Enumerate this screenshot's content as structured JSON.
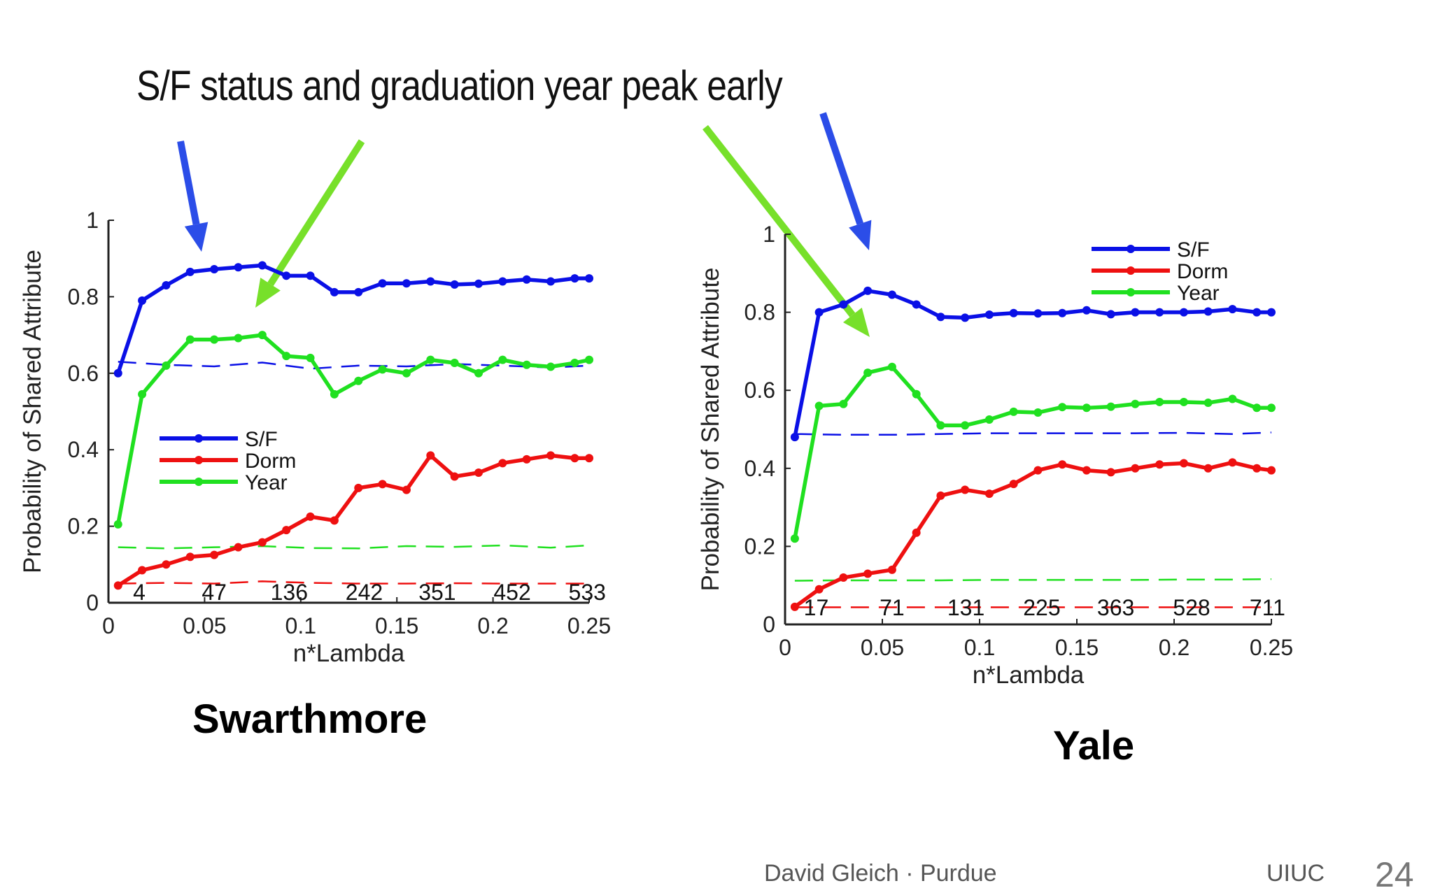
{
  "slide": {
    "title": "S/F status and graduation year peak early",
    "footer_author": "David Gleich · Purdue",
    "footer_venue": "UIUC",
    "page_number": "24",
    "annotation_colors": {
      "blue_arrow": "#2b4de8",
      "green_arrow": "#77e02a"
    }
  },
  "chart_data": [
    {
      "type": "line",
      "caption": "Swarthmore",
      "xlabel": "n*Lambda",
      "ylabel": "Probability of Shared Attribute",
      "xlim": [
        0,
        0.25
      ],
      "ylim": [
        0,
        1
      ],
      "xticks": [
        "0",
        "0.05",
        "0.1",
        "0.15",
        "0.2",
        "0.25"
      ],
      "yticks": [
        "0",
        "0.2",
        "0.4",
        "0.6",
        "0.8",
        "1"
      ],
      "legend": [
        "S/F",
        "Dorm",
        "Year"
      ],
      "legend_position": "middle-left",
      "annotations": [
        {
          "x": 0.016,
          "label": "4"
        },
        {
          "x": 0.055,
          "label": "47"
        },
        {
          "x": 0.094,
          "label": "136"
        },
        {
          "x": 0.133,
          "label": "242"
        },
        {
          "x": 0.171,
          "label": "351"
        },
        {
          "x": 0.21,
          "label": "452"
        },
        {
          "x": 0.249,
          "label": "533"
        }
      ],
      "x": [
        0.005,
        0.0175,
        0.03,
        0.0425,
        0.055,
        0.0675,
        0.08,
        0.0925,
        0.105,
        0.1175,
        0.13,
        0.1425,
        0.155,
        0.1675,
        0.18,
        0.1925,
        0.205,
        0.2175,
        0.23,
        0.2425,
        0.25
      ],
      "series": [
        {
          "name": "S/F",
          "color": "#0a10e6",
          "values": [
            0.6,
            0.79,
            0.83,
            0.865,
            0.872,
            0.877,
            0.882,
            0.855,
            0.855,
            0.812,
            0.812,
            0.835,
            0.835,
            0.84,
            0.832,
            0.834,
            0.84,
            0.845,
            0.84,
            0.848,
            0.848
          ]
        },
        {
          "name": "Dorm",
          "color": "#ee1010",
          "values": [
            0.045,
            0.085,
            0.1,
            0.12,
            0.125,
            0.145,
            0.158,
            0.19,
            0.225,
            0.215,
            0.3,
            0.31,
            0.295,
            0.385,
            0.33,
            0.34,
            0.365,
            0.375,
            0.385,
            0.378,
            0.378
          ]
        },
        {
          "name": "Year",
          "color": "#20e020",
          "values": [
            0.205,
            0.545,
            0.62,
            0.688,
            0.688,
            0.692,
            0.7,
            0.645,
            0.64,
            0.545,
            0.58,
            0.61,
            0.6,
            0.635,
            0.627,
            0.6,
            0.635,
            0.622,
            0.617,
            0.627,
            0.635
          ]
        }
      ],
      "baselines": [
        {
          "name": "S/F baseline",
          "color": "#0a10e6",
          "x": [
            0.005,
            0.03,
            0.055,
            0.08,
            0.105,
            0.13,
            0.155,
            0.18,
            0.205,
            0.23,
            0.25
          ],
          "values": [
            0.63,
            0.622,
            0.618,
            0.628,
            0.612,
            0.62,
            0.618,
            0.624,
            0.62,
            0.615,
            0.62
          ]
        },
        {
          "name": "Year baseline",
          "color": "#20e020",
          "x": [
            0.005,
            0.03,
            0.055,
            0.08,
            0.105,
            0.13,
            0.155,
            0.18,
            0.205,
            0.23,
            0.25
          ],
          "values": [
            0.145,
            0.142,
            0.145,
            0.148,
            0.143,
            0.142,
            0.148,
            0.146,
            0.15,
            0.144,
            0.15
          ]
        },
        {
          "name": "Dorm baseline",
          "color": "#ee1010",
          "x": [
            0.005,
            0.03,
            0.055,
            0.08,
            0.105,
            0.13,
            0.155,
            0.18,
            0.205,
            0.23,
            0.25
          ],
          "values": [
            0.05,
            0.052,
            0.05,
            0.056,
            0.052,
            0.05,
            0.05,
            0.051,
            0.05,
            0.05,
            0.05
          ]
        }
      ]
    },
    {
      "type": "line",
      "caption": "Yale",
      "xlabel": "n*Lambda",
      "ylabel": "Probability of Shared Attribute",
      "xlim": [
        0,
        0.25
      ],
      "ylim": [
        0,
        1
      ],
      "xticks": [
        "0",
        "0.05",
        "0.1",
        "0.15",
        "0.2",
        "0.25"
      ],
      "yticks": [
        "0",
        "0.2",
        "0.4",
        "0.6",
        "0.8",
        "1"
      ],
      "legend": [
        "S/F",
        "Dorm",
        "Year"
      ],
      "legend_position": "top-right",
      "annotations": [
        {
          "x": 0.016,
          "label": "17"
        },
        {
          "x": 0.055,
          "label": "71"
        },
        {
          "x": 0.093,
          "label": "131"
        },
        {
          "x": 0.132,
          "label": "225"
        },
        {
          "x": 0.17,
          "label": "363"
        },
        {
          "x": 0.209,
          "label": "528"
        },
        {
          "x": 0.248,
          "label": "711"
        }
      ],
      "x": [
        0.005,
        0.0175,
        0.03,
        0.0425,
        0.055,
        0.0675,
        0.08,
        0.0925,
        0.105,
        0.1175,
        0.13,
        0.1425,
        0.155,
        0.1675,
        0.18,
        0.1925,
        0.205,
        0.2175,
        0.23,
        0.2425,
        0.25
      ],
      "series": [
        {
          "name": "S/F",
          "color": "#0a10e6",
          "values": [
            0.48,
            0.8,
            0.82,
            0.855,
            0.845,
            0.82,
            0.788,
            0.786,
            0.794,
            0.798,
            0.797,
            0.798,
            0.805,
            0.795,
            0.8,
            0.8,
            0.8,
            0.802,
            0.808,
            0.8,
            0.8
          ]
        },
        {
          "name": "Dorm",
          "color": "#ee1010",
          "values": [
            0.045,
            0.09,
            0.12,
            0.13,
            0.14,
            0.235,
            0.33,
            0.345,
            0.335,
            0.36,
            0.395,
            0.41,
            0.395,
            0.39,
            0.4,
            0.41,
            0.413,
            0.4,
            0.415,
            0.4,
            0.395
          ]
        },
        {
          "name": "Year",
          "color": "#20e020",
          "values": [
            0.22,
            0.56,
            0.565,
            0.645,
            0.66,
            0.59,
            0.51,
            0.51,
            0.525,
            0.545,
            0.543,
            0.557,
            0.555,
            0.558,
            0.565,
            0.57,
            0.57,
            0.568,
            0.578,
            0.555,
            0.555
          ]
        }
      ],
      "baselines": [
        {
          "name": "S/F baseline",
          "color": "#0a10e6",
          "x": [
            0.005,
            0.03,
            0.055,
            0.08,
            0.105,
            0.13,
            0.155,
            0.18,
            0.205,
            0.23,
            0.25
          ],
          "values": [
            0.488,
            0.486,
            0.486,
            0.488,
            0.49,
            0.49,
            0.49,
            0.49,
            0.491,
            0.488,
            0.492
          ]
        },
        {
          "name": "Year baseline",
          "color": "#20e020",
          "x": [
            0.005,
            0.03,
            0.055,
            0.08,
            0.105,
            0.13,
            0.155,
            0.18,
            0.205,
            0.23,
            0.25
          ],
          "values": [
            0.112,
            0.113,
            0.113,
            0.113,
            0.114,
            0.114,
            0.114,
            0.114,
            0.115,
            0.115,
            0.116
          ]
        },
        {
          "name": "Dorm baseline",
          "color": "#ee1010",
          "x": [
            0.005,
            0.03,
            0.055,
            0.08,
            0.105,
            0.13,
            0.155,
            0.18,
            0.205,
            0.23,
            0.25
          ],
          "values": [
            0.044,
            0.044,
            0.044,
            0.044,
            0.044,
            0.044,
            0.044,
            0.044,
            0.044,
            0.044,
            0.044
          ]
        }
      ]
    }
  ]
}
